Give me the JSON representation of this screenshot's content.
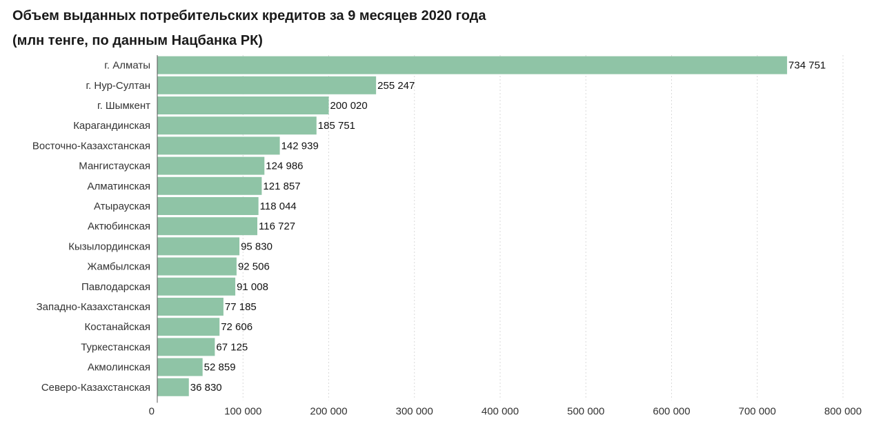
{
  "chart_data": {
    "type": "bar",
    "orientation": "horizontal",
    "title": "Объем выданных потребительских кредитов за 9 месяцев 2020 года",
    "subtitle": "(млн тенге, по данным Нацбанка РК)",
    "bar_color": "#8fc4a6",
    "categories": [
      "г. Алматы",
      "г. Нур-Султан",
      "г. Шымкент",
      "Карагандинская",
      "Восточно-Казахстанская",
      "Мангистауская",
      "Алматинская",
      "Атырауская",
      "Актюбинская",
      "Кызылординская",
      "Жамбылская",
      "Павлодарская",
      "Западно-Казахстанская",
      "Костанайская",
      "Туркестанская",
      "Акмолинская",
      "Северо-Казахстанская"
    ],
    "values": [
      734751,
      255247,
      200020,
      185751,
      142939,
      124986,
      121857,
      118044,
      116727,
      95830,
      92506,
      91008,
      77185,
      72606,
      67125,
      52859,
      36830
    ],
    "value_labels": [
      "734 751",
      "255 247",
      "200 020",
      "185 751",
      "142 939",
      "124 986",
      "121 857",
      "118 044",
      "116 727",
      "95 830",
      "92 506",
      "91 008",
      "77 185",
      "72 606",
      "67 125",
      "52 859",
      "36 830"
    ],
    "xlim": [
      0,
      800000
    ],
    "xticks": [
      0,
      100000,
      200000,
      300000,
      400000,
      500000,
      600000,
      700000,
      800000
    ],
    "xtick_labels": [
      "0",
      "100 000",
      "200 000",
      "300 000",
      "400 000",
      "500 000",
      "600 000",
      "700 000",
      "800 000"
    ],
    "grid": true
  }
}
